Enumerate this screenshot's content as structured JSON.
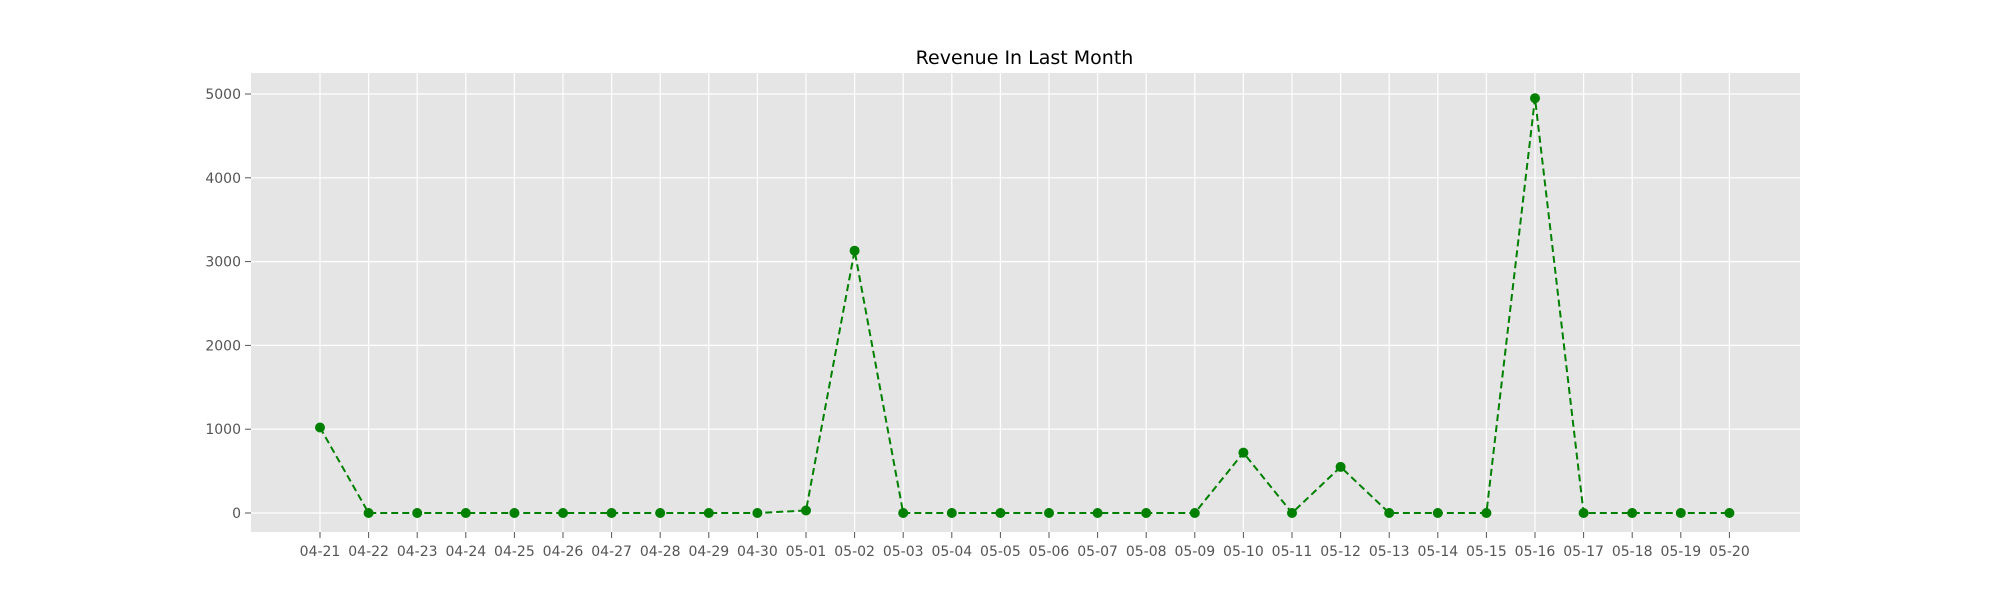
{
  "chart_data": {
    "type": "line",
    "title": "Revenue In Last Month",
    "xlabel": "",
    "ylabel": "",
    "categories": [
      "04-21",
      "04-22",
      "04-23",
      "04-24",
      "04-25",
      "04-26",
      "04-27",
      "04-28",
      "04-29",
      "04-30",
      "05-01",
      "05-02",
      "05-03",
      "05-04",
      "05-05",
      "05-06",
      "05-07",
      "05-08",
      "05-09",
      "05-10",
      "05-11",
      "05-12",
      "05-13",
      "05-14",
      "05-15",
      "05-16",
      "05-17",
      "05-18",
      "05-19",
      "05-20"
    ],
    "series": [
      {
        "values": [
          1020,
          0,
          0,
          0,
          0,
          0,
          0,
          0,
          0,
          0,
          30,
          3130,
          0,
          0,
          0,
          0,
          0,
          0,
          0,
          720,
          0,
          550,
          0,
          0,
          0,
          4950,
          0,
          0,
          0,
          0
        ],
        "color": "#008000",
        "line_style": "dashed",
        "marker": "circle"
      }
    ],
    "ylim": [
      -240,
      5180
    ],
    "yticks": [
      0,
      1000,
      2000,
      3000,
      4000,
      5000
    ],
    "grid": true,
    "legend": "none",
    "background": "#e5e5e5"
  }
}
